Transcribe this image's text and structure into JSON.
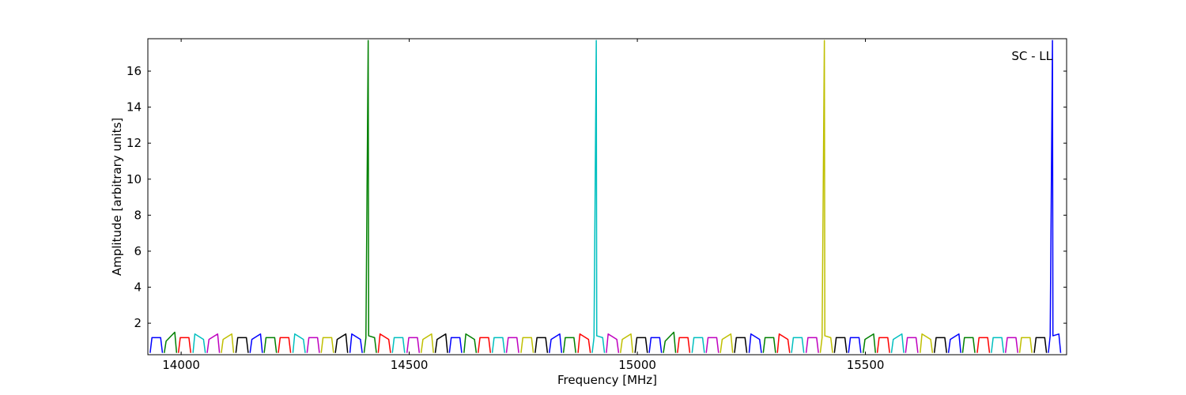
{
  "chart_data": {
    "type": "line",
    "annotation": "SC - LL",
    "x_label": "Frequency [MHz]",
    "y_label": "Amplitude [arbitrary units]",
    "xlim": [
      13927,
      15941
    ],
    "ylim": [
      0.25,
      17.8
    ],
    "xticks": [
      14000,
      14500,
      15000,
      15500
    ],
    "yticks": [
      2,
      4,
      6,
      8,
      10,
      12,
      14,
      16
    ],
    "series": [
      {
        "color": "#0000ff",
        "x": [
          13932,
          13936,
          13955,
          13959,
          null,
          14151,
          14155,
          14174,
          14178,
          null,
          14370,
          14374,
          14393,
          14397,
          null,
          14588,
          14592,
          14611,
          14615,
          null,
          14807,
          14811,
          14830,
          14834,
          null,
          15026,
          15030,
          15049,
          15053,
          null,
          15245,
          15249,
          15268,
          15272,
          null,
          15463,
          15467,
          15486,
          15490,
          null,
          15682,
          15686,
          15705,
          15709,
          null,
          15901,
          15905,
          15910,
          15911,
          15924,
          15928
        ],
        "values": [
          0.35,
          1.2,
          1.2,
          0.35,
          null,
          0.35,
          1.1,
          1.4,
          0.35,
          null,
          0.35,
          1.4,
          1.1,
          0.35,
          null,
          0.35,
          1.2,
          1.2,
          0.35,
          null,
          0.35,
          1.1,
          1.4,
          0.35,
          null,
          0.35,
          1.2,
          1.2,
          0.35,
          null,
          0.35,
          1.4,
          1.1,
          0.35,
          null,
          0.35,
          1.2,
          1.2,
          0.35,
          null,
          0.35,
          1.1,
          1.4,
          0.35,
          null,
          0.35,
          1.3,
          17.7,
          1.3,
          1.4,
          0.35
        ]
      },
      {
        "color": "#008000",
        "x": [
          13963,
          13967,
          13986,
          13990,
          null,
          14182,
          14186,
          14205,
          14209,
          null,
          14401,
          14405,
          14410,
          14411,
          14424,
          14428,
          null,
          14620,
          14624,
          14643,
          14647,
          null,
          14838,
          14842,
          14861,
          14865,
          null,
          15057,
          15061,
          15080,
          15084,
          null,
          15276,
          15280,
          15299,
          15303,
          null,
          15495,
          15499,
          15518,
          15522,
          null,
          15713,
          15717,
          15736,
          15740
        ],
        "values": [
          0.35,
          1.0,
          1.5,
          0.35,
          null,
          0.35,
          1.2,
          1.2,
          0.35,
          null,
          0.35,
          1.2,
          17.7,
          1.3,
          1.2,
          0.35,
          null,
          0.35,
          1.4,
          1.1,
          0.35,
          null,
          0.35,
          1.2,
          1.2,
          0.35,
          null,
          0.35,
          1.0,
          1.5,
          0.35,
          null,
          0.35,
          1.2,
          1.2,
          0.35,
          null,
          0.35,
          1.1,
          1.4,
          0.35,
          null,
          0.35,
          1.2,
          1.2,
          0.35
        ]
      },
      {
        "color": "#ff0000",
        "x": [
          13994,
          13998,
          14017,
          14021,
          null,
          14213,
          14217,
          14236,
          14240,
          null,
          14432,
          14436,
          14455,
          14459,
          null,
          14651,
          14655,
          14674,
          14678,
          null,
          14870,
          14874,
          14893,
          14897,
          null,
          15088,
          15092,
          15111,
          15115,
          null,
          15307,
          15311,
          15330,
          15334,
          null,
          15526,
          15530,
          15549,
          15553,
          null,
          15745,
          15749,
          15768,
          15772
        ],
        "values": [
          0.35,
          1.2,
          1.2,
          0.35,
          null,
          0.35,
          1.2,
          1.2,
          0.35,
          null,
          0.35,
          1.4,
          1.1,
          0.35,
          null,
          0.35,
          1.2,
          1.2,
          0.35,
          null,
          0.35,
          1.4,
          1.1,
          0.35,
          null,
          0.35,
          1.2,
          1.2,
          0.35,
          null,
          0.35,
          1.4,
          1.1,
          0.35,
          null,
          0.35,
          1.2,
          1.2,
          0.35,
          null,
          0.35,
          1.2,
          1.2,
          0.35
        ]
      },
      {
        "color": "#00bfbf",
        "x": [
          14026,
          14030,
          14049,
          14053,
          null,
          14245,
          14249,
          14268,
          14272,
          null,
          14463,
          14467,
          14486,
          14490,
          null,
          14682,
          14686,
          14705,
          14709,
          null,
          14901,
          14905,
          14910,
          14911,
          14924,
          14928,
          null,
          15120,
          15124,
          15143,
          15147,
          null,
          15338,
          15342,
          15361,
          15365,
          null,
          15557,
          15561,
          15580,
          15584,
          null,
          15776,
          15780,
          15799,
          15803
        ],
        "values": [
          0.35,
          1.4,
          1.1,
          0.35,
          null,
          0.35,
          1.4,
          1.1,
          0.35,
          null,
          0.35,
          1.2,
          1.2,
          0.35,
          null,
          0.35,
          1.2,
          1.2,
          0.35,
          null,
          0.35,
          1.2,
          17.7,
          1.3,
          1.2,
          0.35,
          null,
          0.35,
          1.2,
          1.2,
          0.35,
          null,
          0.35,
          1.2,
          1.2,
          0.35,
          null,
          0.35,
          1.1,
          1.4,
          0.35,
          null,
          0.35,
          1.2,
          1.2,
          0.35
        ]
      },
      {
        "color": "#bf00bf",
        "x": [
          14057,
          14061,
          14080,
          14084,
          null,
          14276,
          14280,
          14299,
          14303,
          null,
          14495,
          14499,
          14518,
          14522,
          null,
          14713,
          14717,
          14736,
          14740,
          null,
          14932,
          14936,
          14955,
          14959,
          null,
          15151,
          15155,
          15174,
          15178,
          null,
          15370,
          15374,
          15393,
          15397,
          null,
          15588,
          15592,
          15611,
          15615,
          null,
          15807,
          15811,
          15830,
          15834
        ],
        "values": [
          0.35,
          1.1,
          1.4,
          0.35,
          null,
          0.35,
          1.2,
          1.2,
          0.35,
          null,
          0.35,
          1.2,
          1.2,
          0.35,
          null,
          0.35,
          1.2,
          1.2,
          0.35,
          null,
          0.35,
          1.4,
          1.1,
          0.35,
          null,
          0.35,
          1.2,
          1.2,
          0.35,
          null,
          0.35,
          1.2,
          1.2,
          0.35,
          null,
          0.35,
          1.2,
          1.2,
          0.35,
          null,
          0.35,
          1.2,
          1.2,
          0.35
        ]
      },
      {
        "color": "#bfbf00",
        "x": [
          14088,
          14092,
          14111,
          14115,
          null,
          14307,
          14311,
          14330,
          14334,
          null,
          14526,
          14530,
          14549,
          14553,
          null,
          14745,
          14749,
          14768,
          14772,
          null,
          14963,
          14967,
          14986,
          14990,
          null,
          15182,
          15186,
          15205,
          15209,
          null,
          15401,
          15405,
          15410,
          15411,
          15424,
          15428,
          null,
          15620,
          15624,
          15643,
          15647,
          null,
          15838,
          15842,
          15861,
          15865
        ],
        "values": [
          0.35,
          1.1,
          1.4,
          0.35,
          null,
          0.35,
          1.2,
          1.2,
          0.35,
          null,
          0.35,
          1.1,
          1.4,
          0.35,
          null,
          0.35,
          1.2,
          1.2,
          0.35,
          null,
          0.35,
          1.1,
          1.4,
          0.35,
          null,
          0.35,
          1.1,
          1.4,
          0.35,
          null,
          0.35,
          1.2,
          17.7,
          1.3,
          1.2,
          0.35,
          null,
          0.35,
          1.4,
          1.1,
          0.35,
          null,
          0.35,
          1.2,
          1.2,
          0.35
        ]
      },
      {
        "color": "#000000",
        "x": [
          14120,
          14124,
          14143,
          14147,
          null,
          14338,
          14342,
          14361,
          14365,
          null,
          14557,
          14561,
          14580,
          14584,
          null,
          14776,
          14780,
          14799,
          14803,
          null,
          14995,
          14999,
          15018,
          15022,
          null,
          15213,
          15217,
          15236,
          15240,
          null,
          15432,
          15436,
          15455,
          15459,
          null,
          15651,
          15655,
          15674,
          15678,
          null,
          15870,
          15874,
          15893,
          15897
        ],
        "values": [
          0.35,
          1.2,
          1.2,
          0.35,
          null,
          0.35,
          1.1,
          1.4,
          0.35,
          null,
          0.35,
          1.1,
          1.4,
          0.35,
          null,
          0.35,
          1.2,
          1.2,
          0.35,
          null,
          0.35,
          1.2,
          1.2,
          0.35,
          null,
          0.35,
          1.2,
          1.2,
          0.35,
          null,
          0.35,
          1.2,
          1.2,
          0.35,
          null,
          0.35,
          1.2,
          1.2,
          0.35,
          null,
          0.35,
          1.2,
          1.2,
          0.35
        ]
      }
    ]
  }
}
